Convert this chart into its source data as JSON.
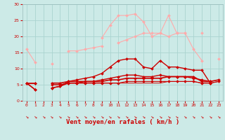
{
  "bg_color": "#cceae7",
  "grid_color": "#aad4d0",
  "x_labels": [
    "0",
    "1",
    "2",
    "3",
    "4",
    "5",
    "6",
    "7",
    "8",
    "9",
    "10",
    "11",
    "12",
    "13",
    "14",
    "15",
    "16",
    "17",
    "18",
    "19",
    "20",
    "21",
    "22",
    "23"
  ],
  "xlabel": "Vent moyen/en rafales ( km/h )",
  "xlabel_color": "#cc0000",
  "ylim": [
    0,
    30
  ],
  "yticks": [
    0,
    5,
    10,
    15,
    20,
    25,
    30
  ],
  "line1": {
    "y": [
      16.0,
      12.0,
      null,
      11.5,
      null,
      15.5,
      15.5,
      16.0,
      16.5,
      17.0,
      null,
      18.0,
      19.0,
      20.0,
      21.0,
      21.0,
      21.0,
      20.0,
      21.0,
      21.0,
      null,
      21.0,
      null,
      13.0
    ],
    "color": "#ffaaaa",
    "lw": 0.8,
    "marker": "D",
    "ms": 2.0
  },
  "line2": {
    "y": [
      null,
      null,
      null,
      null,
      null,
      null,
      null,
      null,
      null,
      19.5,
      23.5,
      26.5,
      26.5,
      27.0,
      24.5,
      20.0,
      21.0,
      26.5,
      21.0,
      21.0,
      16.0,
      12.5,
      null,
      null
    ],
    "color": "#ffaaaa",
    "lw": 0.8,
    "marker": "D",
    "ms": 2.0
  },
  "line3": {
    "y": [
      5.5,
      3.5,
      null,
      4.0,
      4.5,
      6.0,
      6.5,
      7.0,
      7.5,
      8.5,
      10.5,
      12.5,
      13.0,
      13.0,
      10.5,
      10.0,
      12.5,
      10.5,
      10.5,
      10.0,
      9.5,
      9.5,
      5.5,
      null
    ],
    "color": "#cc0000",
    "lw": 1.0,
    "marker": "D",
    "ms": 2.0
  },
  "line4": {
    "y": [
      5.5,
      3.5,
      null,
      4.0,
      4.5,
      5.5,
      5.5,
      6.0,
      6.0,
      6.5,
      7.0,
      7.5,
      8.0,
      8.0,
      7.5,
      7.5,
      8.0,
      7.5,
      7.5,
      7.5,
      7.0,
      6.5,
      6.0,
      null
    ],
    "color": "#cc0000",
    "lw": 1.0,
    "marker": "D",
    "ms": 2.0
  },
  "line5": {
    "y": [
      5.5,
      5.5,
      null,
      5.5,
      5.5,
      6.0,
      6.0,
      6.0,
      6.0,
      6.0,
      6.5,
      6.5,
      7.0,
      7.0,
      7.0,
      7.0,
      7.0,
      7.5,
      7.5,
      7.5,
      7.5,
      6.0,
      6.0,
      6.5
    ],
    "color": "#cc0000",
    "lw": 1.2,
    "marker": "D",
    "ms": 2.0
  },
  "line6": {
    "y": [
      5.5,
      5.5,
      null,
      5.0,
      5.0,
      5.5,
      5.5,
      5.5,
      5.5,
      5.5,
      5.5,
      5.5,
      6.0,
      6.0,
      6.0,
      6.0,
      6.0,
      6.0,
      6.0,
      6.0,
      6.0,
      5.5,
      5.5,
      6.0
    ],
    "color": "#cc0000",
    "lw": 0.8,
    "marker": "D",
    "ms": 2.0
  },
  "line7": {
    "y": [
      5.5,
      5.5,
      null,
      5.0,
      5.0,
      5.5,
      5.5,
      5.5,
      5.5,
      5.5,
      5.5,
      5.5,
      5.5,
      5.5,
      5.5,
      5.5,
      5.5,
      6.0,
      6.0,
      6.0,
      6.0,
      5.5,
      5.5,
      6.0
    ],
    "color": "#cc0000",
    "lw": 0.7,
    "marker": null,
    "ms": 0
  },
  "tick_color": "#cc0000",
  "tick_fontsize": 4.5,
  "xlabel_fontsize": 6.5
}
